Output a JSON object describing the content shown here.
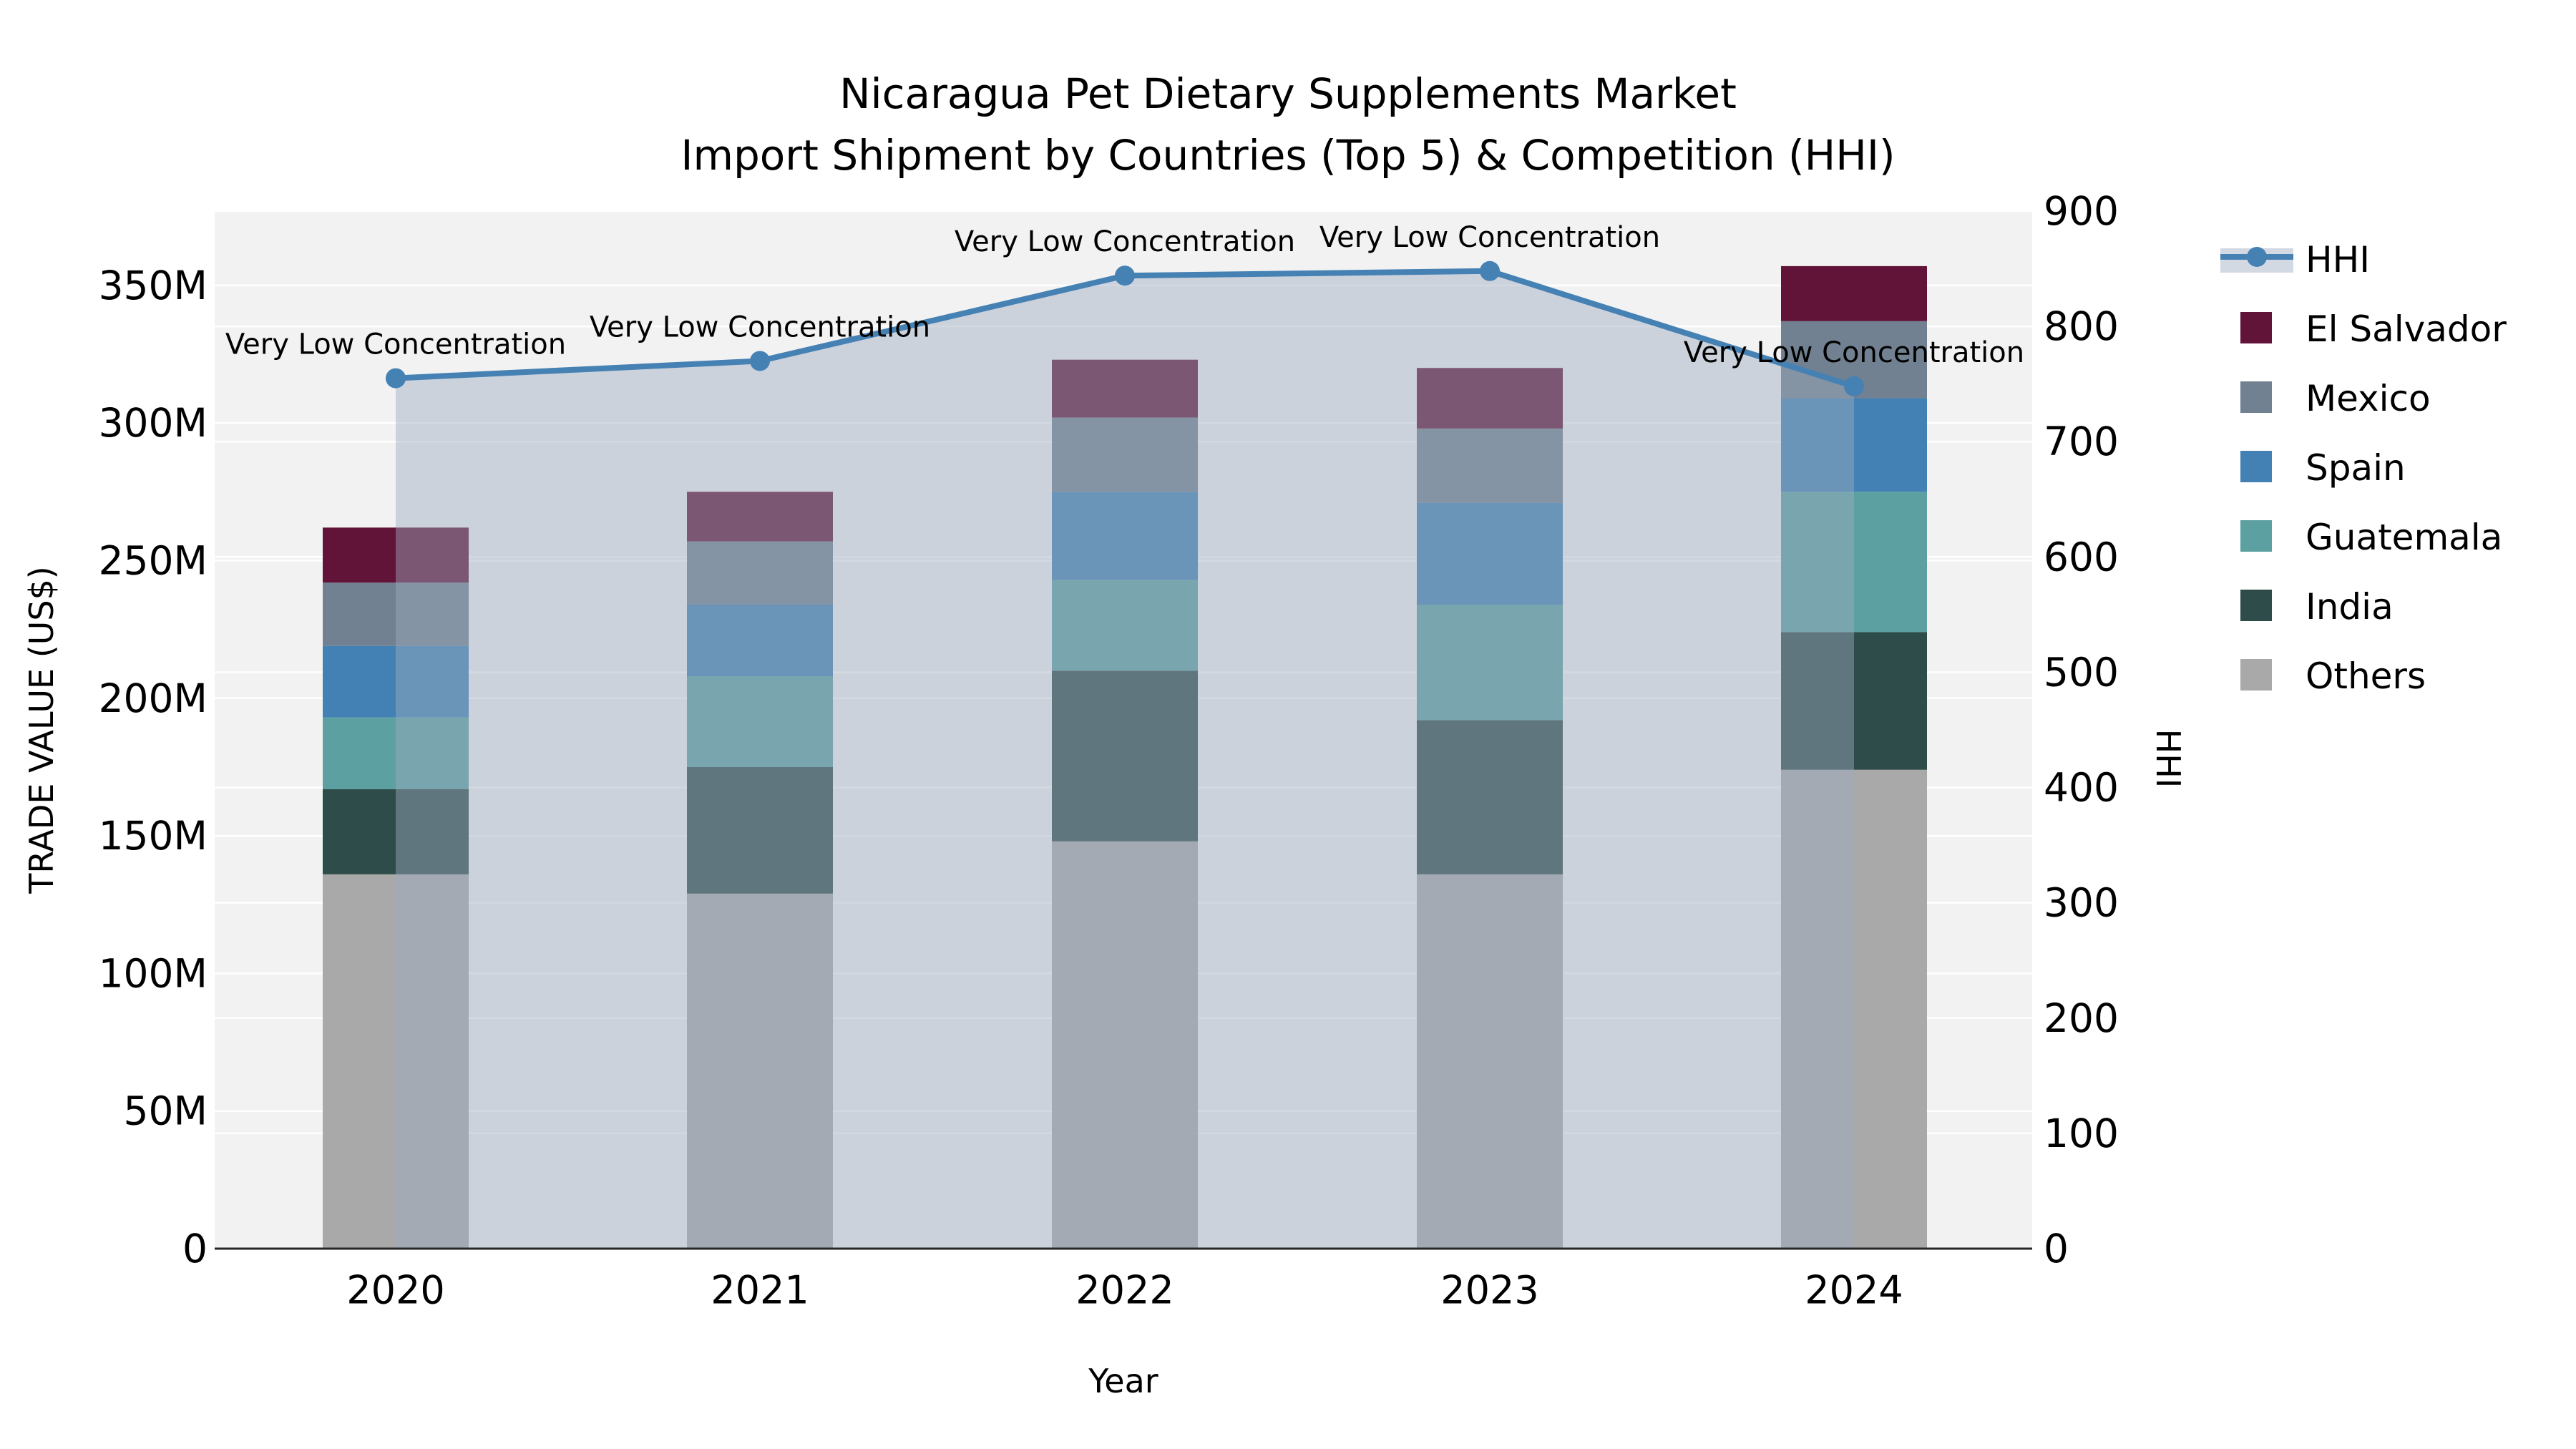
{
  "chart_data": {
    "type": "bar",
    "subtype": "stacked-bars-with-line-area-overlay",
    "title_line1": "Nicaragua Pet Dietary Supplements Market",
    "title_line2": "Import Shipment by Countries (Top 5) & Competition (HHI)",
    "xlabel": "Year",
    "ylabel_left": "TRADE VALUE (US$)",
    "ylabel_right": "HHI",
    "categories": [
      "2020",
      "2021",
      "2022",
      "2023",
      "2024"
    ],
    "stack_bottom_to_top": [
      "Others",
      "India",
      "Guatemala",
      "Spain",
      "Mexico",
      "El Salvador"
    ],
    "series": [
      {
        "name": "El Salvador",
        "color": "#611338",
        "values": [
          20,
          18,
          21,
          22,
          20
        ]
      },
      {
        "name": "Mexico",
        "color": "#718191",
        "values": [
          23,
          23,
          27,
          27,
          28
        ]
      },
      {
        "name": "Spain",
        "color": "#4381b5",
        "values": [
          26,
          26,
          32,
          37,
          34
        ]
      },
      {
        "name": "Guatemala",
        "color": "#5ca0a2",
        "values": [
          26,
          33,
          33,
          42,
          51
        ]
      },
      {
        "name": "India",
        "color": "#2e4c4a",
        "values": [
          31,
          46,
          62,
          56,
          50
        ]
      },
      {
        "name": "Others",
        "color": "#a9a9a9",
        "values": [
          136,
          129,
          148,
          136,
          174
        ]
      }
    ],
    "bar_totals_M": [
      262,
      275,
      323,
      320,
      357
    ],
    "hhi": {
      "name": "HHI",
      "line_color": "#4681b4",
      "area_fill": "rgba(158,170,190,0.45)",
      "values": [
        755,
        770,
        844,
        848,
        748
      ]
    },
    "annotations": [
      "Very Low Concentration",
      "Very Low Concentration",
      "Very Low Concentration",
      "Very Low Concentration",
      "Very Low Concentration"
    ],
    "left_axis": {
      "tick_labels": [
        "0",
        "50M",
        "100M",
        "150M",
        "200M",
        "250M",
        "300M",
        "350M"
      ],
      "tick_values": [
        0,
        50,
        100,
        150,
        200,
        250,
        300,
        350
      ],
      "ylim": [
        0,
        377
      ]
    },
    "right_axis": {
      "tick_labels": [
        "0",
        "100",
        "200",
        "300",
        "400",
        "500",
        "600",
        "700",
        "800",
        "900"
      ],
      "tick_values": [
        0,
        100,
        200,
        300,
        400,
        500,
        600,
        700,
        800,
        900
      ],
      "ylim": [
        0,
        900
      ]
    },
    "legend_order": [
      "HHI",
      "El Salvador",
      "Mexico",
      "Spain",
      "Guatemala",
      "India",
      "Others"
    ],
    "colors": {
      "plot_background": "#f2f2f2",
      "grid": "#ffffff",
      "axis_spine": "#262626",
      "text": "#000000"
    },
    "layout_hints": {
      "grid": "on",
      "legend_position": "right-top-outside"
    }
  }
}
